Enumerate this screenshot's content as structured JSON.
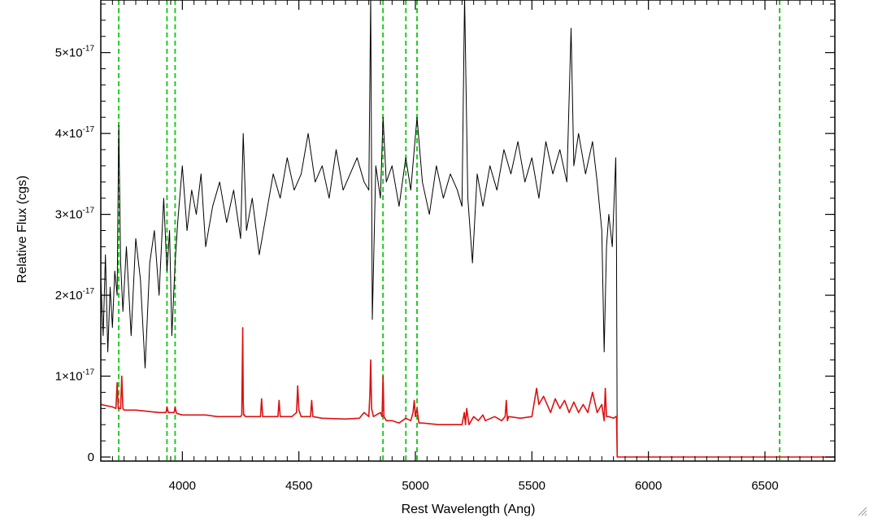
{
  "chart_data": {
    "type": "line",
    "title": "",
    "xlabel": "Rest Wavelength (Ang)",
    "ylabel": "Relative Flux (cgs)",
    "xlim": [
      3650,
      6800
    ],
    "ylim": [
      -0.05,
      5.65
    ],
    "y_unit_exponent": -17,
    "x_ticks": [
      {
        "value": 4000,
        "label": "4000"
      },
      {
        "value": 4500,
        "label": "4500"
      },
      {
        "value": 5000,
        "label": "5000"
      },
      {
        "value": 5500,
        "label": "5500"
      },
      {
        "value": 6000,
        "label": "6000"
      },
      {
        "value": 6500,
        "label": "6500"
      }
    ],
    "y_ticks": [
      {
        "value": 0,
        "label": "0"
      },
      {
        "value": 1,
        "label": "1×10",
        "exp": "-17"
      },
      {
        "value": 2,
        "label": "2×10",
        "exp": "-17"
      },
      {
        "value": 3,
        "label": "3×10",
        "exp": "-17"
      },
      {
        "value": 4,
        "label": "4×10",
        "exp": "-17"
      },
      {
        "value": 5,
        "label": "5×10",
        "exp": "-17"
      }
    ],
    "grid": false,
    "legend": "none",
    "reference_lines": [
      3727,
      3934,
      3969,
      4861,
      4959,
      5007,
      6563
    ],
    "series": [
      {
        "color": "#000000",
        "style": "solid",
        "x": [
          3650,
          3660,
          3670,
          3680,
          3690,
          3700,
          3710,
          3720,
          3727,
          3735,
          3745,
          3760,
          3780,
          3800,
          3820,
          3840,
          3860,
          3880,
          3900,
          3920,
          3934,
          3945,
          3955,
          3969,
          3980,
          4000,
          4020,
          4040,
          4060,
          4080,
          4100,
          4130,
          4160,
          4190,
          4220,
          4250,
          4261,
          4275,
          4300,
          4330,
          4360,
          4390,
          4420,
          4450,
          4480,
          4510,
          4540,
          4570,
          4600,
          4630,
          4660,
          4690,
          4720,
          4750,
          4780,
          4800,
          4808,
          4815,
          4830,
          4850,
          4861,
          4875,
          4900,
          4930,
          4959,
          4980,
          5007,
          5030,
          5060,
          5090,
          5120,
          5150,
          5180,
          5200,
          5211,
          5225,
          5245,
          5265,
          5290,
          5320,
          5350,
          5380,
          5410,
          5440,
          5470,
          5500,
          5530,
          5560,
          5590,
          5620,
          5650,
          5668,
          5680,
          5700,
          5730,
          5760,
          5780,
          5800,
          5810,
          5820,
          5830,
          5845,
          5860,
          5863,
          5866,
          5870,
          5900,
          6000,
          6200,
          6400,
          6600,
          6800
        ],
        "y": [
          2.2,
          1.5,
          2.5,
          1.3,
          2.1,
          1.6,
          2.3,
          2.0,
          4.1,
          2.4,
          1.8,
          2.6,
          1.5,
          2.7,
          2.2,
          1.1,
          2.4,
          2.8,
          2.0,
          3.2,
          2.3,
          2.8,
          1.5,
          2.4,
          2.9,
          3.6,
          2.8,
          3.3,
          3.0,
          3.5,
          2.6,
          3.1,
          3.4,
          2.9,
          3.3,
          2.7,
          4.0,
          2.8,
          3.2,
          2.5,
          3.0,
          3.5,
          3.2,
          3.7,
          3.3,
          3.5,
          4.0,
          3.4,
          3.6,
          3.2,
          3.8,
          3.3,
          3.5,
          3.7,
          3.4,
          3.3,
          5.7,
          1.7,
          3.6,
          3.2,
          4.2,
          3.4,
          3.6,
          3.1,
          3.7,
          3.3,
          4.2,
          3.4,
          3.0,
          3.6,
          3.2,
          3.5,
          3.3,
          3.1,
          5.7,
          3.2,
          2.4,
          3.5,
          3.1,
          3.6,
          3.3,
          3.8,
          3.5,
          3.9,
          3.4,
          3.7,
          3.2,
          3.9,
          3.5,
          3.8,
          3.4,
          5.3,
          3.6,
          4.0,
          3.5,
          3.9,
          3.4,
          2.8,
          1.3,
          2.6,
          3.0,
          2.6,
          3.7,
          2.6,
          0,
          0,
          0,
          0,
          0,
          0,
          0,
          0
        ]
      },
      {
        "color": "#dd1111",
        "style": "solid",
        "x": [
          3650,
          3700,
          3715,
          3720,
          3725,
          3735,
          3740,
          3745,
          3750,
          3800,
          3900,
          3930,
          3934,
          3940,
          3965,
          3969,
          3975,
          4000,
          4050,
          4100,
          4150,
          4200,
          4250,
          4255,
          4259,
          4261,
          4263,
          4267,
          4270,
          4300,
          4335,
          4340,
          4345,
          4400,
          4410,
          4415,
          4420,
          4470,
          4490,
          4495,
          4500,
          4510,
          4540,
          4550,
          4555,
          4560,
          4600,
          4700,
          4760,
          4780,
          4800,
          4805,
          4808,
          4812,
          4820,
          4850,
          4857,
          4861,
          4865,
          4875,
          4900,
          4930,
          4959,
          4980,
          4990,
          4995,
          5000,
          5007,
          5015,
          5030,
          5100,
          5150,
          5200,
          5210,
          5215,
          5220,
          5230,
          5250,
          5270,
          5290,
          5300,
          5340,
          5370,
          5385,
          5390,
          5395,
          5400,
          5450,
          5500,
          5520,
          5530,
          5550,
          5580,
          5600,
          5620,
          5640,
          5660,
          5680,
          5700,
          5720,
          5740,
          5760,
          5780,
          5800,
          5810,
          5815,
          5820,
          5830,
          5850,
          5860,
          5863,
          5866,
          5870,
          5900,
          6000,
          6200,
          6400,
          6600,
          6800
        ],
        "y": [
          0.65,
          0.62,
          0.6,
          0.92,
          0.6,
          0.6,
          1.0,
          0.6,
          0.58,
          0.58,
          0.55,
          0.55,
          0.62,
          0.55,
          0.55,
          0.62,
          0.54,
          0.52,
          0.52,
          0.52,
          0.5,
          0.5,
          0.5,
          0.52,
          1.6,
          0.7,
          0.52,
          0.52,
          0.5,
          0.5,
          0.5,
          0.72,
          0.5,
          0.5,
          0.5,
          0.7,
          0.5,
          0.5,
          0.55,
          0.88,
          0.58,
          0.5,
          0.5,
          0.5,
          0.7,
          0.5,
          0.48,
          0.47,
          0.48,
          0.55,
          0.5,
          0.8,
          1.2,
          0.6,
          0.5,
          0.55,
          0.5,
          1.0,
          0.5,
          0.45,
          0.45,
          0.42,
          0.48,
          0.45,
          0.55,
          0.7,
          0.5,
          0.6,
          0.42,
          0.42,
          0.4,
          0.4,
          0.4,
          0.55,
          0.4,
          0.6,
          0.4,
          0.5,
          0.45,
          0.52,
          0.45,
          0.5,
          0.45,
          0.5,
          0.7,
          0.45,
          0.5,
          0.48,
          0.5,
          0.85,
          0.65,
          0.75,
          0.55,
          0.72,
          0.6,
          0.7,
          0.55,
          0.68,
          0.55,
          0.65,
          0.55,
          0.8,
          0.55,
          0.65,
          0.45,
          0.85,
          0.5,
          0.5,
          0.48,
          0.5,
          0.5,
          0,
          0,
          0,
          0,
          0,
          0,
          0,
          0
        ]
      }
    ]
  }
}
